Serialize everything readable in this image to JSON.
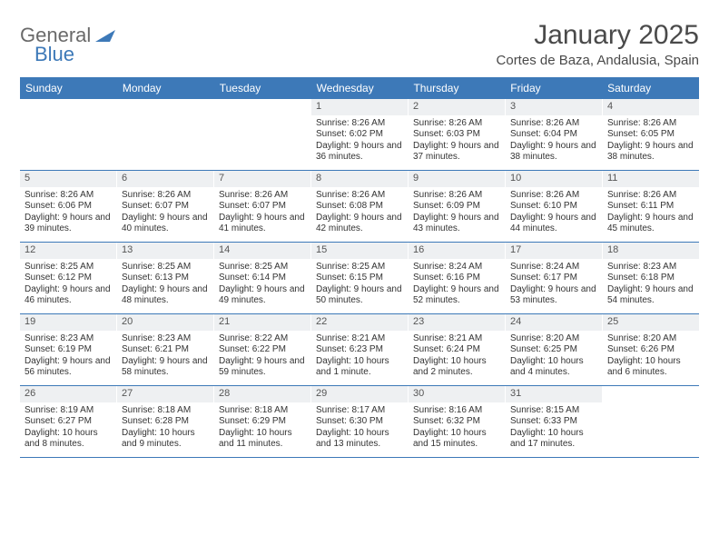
{
  "brand": {
    "text1": "General",
    "text2": "Blue"
  },
  "title": "January 2025",
  "subtitle": "Cortes de Baza, Andalusia, Spain",
  "colors": {
    "accent": "#3d79b8",
    "dayHeaderBg": "#3d79b8",
    "dayHeaderText": "#ffffff",
    "dayNumBg": "#eef0f2",
    "border": "#3d79b8",
    "text": "#333333"
  },
  "dayNames": [
    "Sunday",
    "Monday",
    "Tuesday",
    "Wednesday",
    "Thursday",
    "Friday",
    "Saturday"
  ],
  "weeks": [
    [
      {
        "n": "",
        "sr": "",
        "ss": "",
        "dl": ""
      },
      {
        "n": "",
        "sr": "",
        "ss": "",
        "dl": ""
      },
      {
        "n": "",
        "sr": "",
        "ss": "",
        "dl": ""
      },
      {
        "n": "1",
        "sr": "Sunrise: 8:26 AM",
        "ss": "Sunset: 6:02 PM",
        "dl": "Daylight: 9 hours and 36 minutes."
      },
      {
        "n": "2",
        "sr": "Sunrise: 8:26 AM",
        "ss": "Sunset: 6:03 PM",
        "dl": "Daylight: 9 hours and 37 minutes."
      },
      {
        "n": "3",
        "sr": "Sunrise: 8:26 AM",
        "ss": "Sunset: 6:04 PM",
        "dl": "Daylight: 9 hours and 38 minutes."
      },
      {
        "n": "4",
        "sr": "Sunrise: 8:26 AM",
        "ss": "Sunset: 6:05 PM",
        "dl": "Daylight: 9 hours and 38 minutes."
      }
    ],
    [
      {
        "n": "5",
        "sr": "Sunrise: 8:26 AM",
        "ss": "Sunset: 6:06 PM",
        "dl": "Daylight: 9 hours and 39 minutes."
      },
      {
        "n": "6",
        "sr": "Sunrise: 8:26 AM",
        "ss": "Sunset: 6:07 PM",
        "dl": "Daylight: 9 hours and 40 minutes."
      },
      {
        "n": "7",
        "sr": "Sunrise: 8:26 AM",
        "ss": "Sunset: 6:07 PM",
        "dl": "Daylight: 9 hours and 41 minutes."
      },
      {
        "n": "8",
        "sr": "Sunrise: 8:26 AM",
        "ss": "Sunset: 6:08 PM",
        "dl": "Daylight: 9 hours and 42 minutes."
      },
      {
        "n": "9",
        "sr": "Sunrise: 8:26 AM",
        "ss": "Sunset: 6:09 PM",
        "dl": "Daylight: 9 hours and 43 minutes."
      },
      {
        "n": "10",
        "sr": "Sunrise: 8:26 AM",
        "ss": "Sunset: 6:10 PM",
        "dl": "Daylight: 9 hours and 44 minutes."
      },
      {
        "n": "11",
        "sr": "Sunrise: 8:26 AM",
        "ss": "Sunset: 6:11 PM",
        "dl": "Daylight: 9 hours and 45 minutes."
      }
    ],
    [
      {
        "n": "12",
        "sr": "Sunrise: 8:25 AM",
        "ss": "Sunset: 6:12 PM",
        "dl": "Daylight: 9 hours and 46 minutes."
      },
      {
        "n": "13",
        "sr": "Sunrise: 8:25 AM",
        "ss": "Sunset: 6:13 PM",
        "dl": "Daylight: 9 hours and 48 minutes."
      },
      {
        "n": "14",
        "sr": "Sunrise: 8:25 AM",
        "ss": "Sunset: 6:14 PM",
        "dl": "Daylight: 9 hours and 49 minutes."
      },
      {
        "n": "15",
        "sr": "Sunrise: 8:25 AM",
        "ss": "Sunset: 6:15 PM",
        "dl": "Daylight: 9 hours and 50 minutes."
      },
      {
        "n": "16",
        "sr": "Sunrise: 8:24 AM",
        "ss": "Sunset: 6:16 PM",
        "dl": "Daylight: 9 hours and 52 minutes."
      },
      {
        "n": "17",
        "sr": "Sunrise: 8:24 AM",
        "ss": "Sunset: 6:17 PM",
        "dl": "Daylight: 9 hours and 53 minutes."
      },
      {
        "n": "18",
        "sr": "Sunrise: 8:23 AM",
        "ss": "Sunset: 6:18 PM",
        "dl": "Daylight: 9 hours and 54 minutes."
      }
    ],
    [
      {
        "n": "19",
        "sr": "Sunrise: 8:23 AM",
        "ss": "Sunset: 6:19 PM",
        "dl": "Daylight: 9 hours and 56 minutes."
      },
      {
        "n": "20",
        "sr": "Sunrise: 8:23 AM",
        "ss": "Sunset: 6:21 PM",
        "dl": "Daylight: 9 hours and 58 minutes."
      },
      {
        "n": "21",
        "sr": "Sunrise: 8:22 AM",
        "ss": "Sunset: 6:22 PM",
        "dl": "Daylight: 9 hours and 59 minutes."
      },
      {
        "n": "22",
        "sr": "Sunrise: 8:21 AM",
        "ss": "Sunset: 6:23 PM",
        "dl": "Daylight: 10 hours and 1 minute."
      },
      {
        "n": "23",
        "sr": "Sunrise: 8:21 AM",
        "ss": "Sunset: 6:24 PM",
        "dl": "Daylight: 10 hours and 2 minutes."
      },
      {
        "n": "24",
        "sr": "Sunrise: 8:20 AM",
        "ss": "Sunset: 6:25 PM",
        "dl": "Daylight: 10 hours and 4 minutes."
      },
      {
        "n": "25",
        "sr": "Sunrise: 8:20 AM",
        "ss": "Sunset: 6:26 PM",
        "dl": "Daylight: 10 hours and 6 minutes."
      }
    ],
    [
      {
        "n": "26",
        "sr": "Sunrise: 8:19 AM",
        "ss": "Sunset: 6:27 PM",
        "dl": "Daylight: 10 hours and 8 minutes."
      },
      {
        "n": "27",
        "sr": "Sunrise: 8:18 AM",
        "ss": "Sunset: 6:28 PM",
        "dl": "Daylight: 10 hours and 9 minutes."
      },
      {
        "n": "28",
        "sr": "Sunrise: 8:18 AM",
        "ss": "Sunset: 6:29 PM",
        "dl": "Daylight: 10 hours and 11 minutes."
      },
      {
        "n": "29",
        "sr": "Sunrise: 8:17 AM",
        "ss": "Sunset: 6:30 PM",
        "dl": "Daylight: 10 hours and 13 minutes."
      },
      {
        "n": "30",
        "sr": "Sunrise: 8:16 AM",
        "ss": "Sunset: 6:32 PM",
        "dl": "Daylight: 10 hours and 15 minutes."
      },
      {
        "n": "31",
        "sr": "Sunrise: 8:15 AM",
        "ss": "Sunset: 6:33 PM",
        "dl": "Daylight: 10 hours and 17 minutes."
      },
      {
        "n": "",
        "sr": "",
        "ss": "",
        "dl": ""
      }
    ]
  ]
}
